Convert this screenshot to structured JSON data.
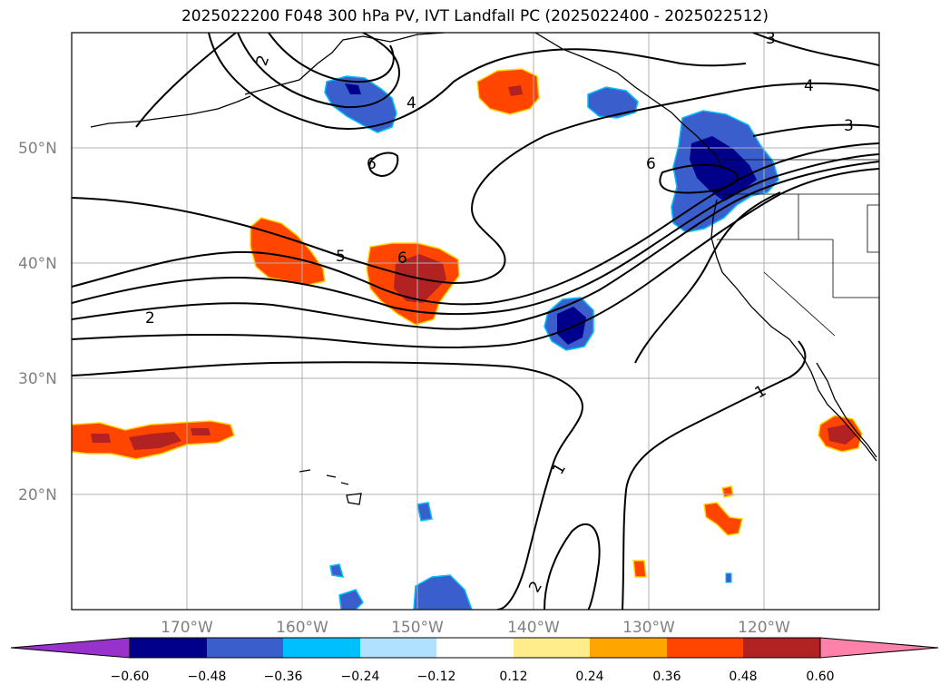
{
  "title": "2025022200 F048 300 hPa PV, IVT Landfall PC (2025022400 - 2025022512)",
  "latitude_labels": [
    "50°N",
    "40°N",
    "30°N",
    "20°N"
  ],
  "longitude_labels": [
    "170°W",
    "160°W",
    "150°W",
    "140°W",
    "130°W",
    "120°W"
  ],
  "contour_labels": [
    "2",
    "4",
    "6",
    "3",
    "4",
    "3",
    "6",
    "5",
    "6",
    "2",
    "1",
    "1",
    "2"
  ],
  "colorbar": {
    "tick_labels": [
      "−0.60",
      "−0.48",
      "−0.36",
      "−0.24",
      "−0.12",
      "0.12",
      "0.24",
      "0.36",
      "0.48",
      "0.60"
    ],
    "colors": [
      "#9932cc",
      "#00008b",
      "#3a5fcd",
      "#00bfff",
      "#b0e2ff",
      "#ffffff",
      "#ffec8b",
      "#ffa500",
      "#ff4500",
      "#b22222",
      "#ff82ab"
    ]
  },
  "colors": {
    "negative_strong": "#00008b",
    "negative_mid": "#3a5fcd",
    "negative_light": "#00bfff",
    "positive_mid": "#ff4500",
    "positive_strong": "#b22222",
    "grid": "#b0b0b0"
  }
}
